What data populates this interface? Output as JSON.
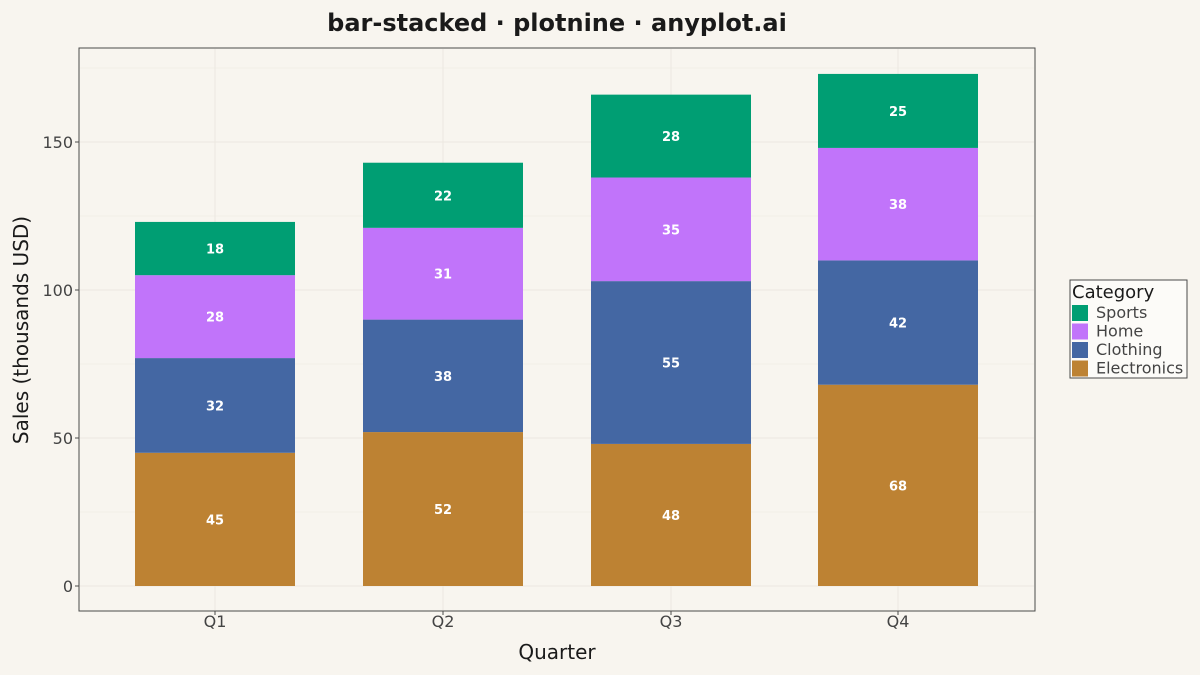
{
  "chart_data": {
    "type": "bar",
    "stacked": true,
    "title": "bar-stacked · plotnine · anyplot.ai",
    "xlabel": "Quarter",
    "ylabel": "Sales (thousands USD)",
    "categories": [
      "Q1",
      "Q2",
      "Q3",
      "Q4"
    ],
    "ylim": [
      0,
      180
    ],
    "yticks": [
      0,
      50,
      100,
      150
    ],
    "grid": true,
    "legend": {
      "title": "Category",
      "position": "right",
      "order": [
        "Sports",
        "Home",
        "Clothing",
        "Electronics"
      ]
    },
    "series": [
      {
        "name": "Electronics",
        "color": "#BD8233",
        "values": [
          45,
          52,
          48,
          68
        ]
      },
      {
        "name": "Clothing",
        "color": "#4467A3",
        "values": [
          32,
          38,
          55,
          42
        ]
      },
      {
        "name": "Home",
        "color": "#C174FA",
        "values": [
          28,
          31,
          35,
          38
        ]
      },
      {
        "name": "Sports",
        "color": "#009E73",
        "values": [
          18,
          22,
          28,
          25
        ]
      }
    ]
  },
  "colors": {
    "background": "#F8F5EF",
    "panel_border": "#4A4A4A",
    "grid": "#ECE8E0",
    "text": "#1A1A1A"
  }
}
